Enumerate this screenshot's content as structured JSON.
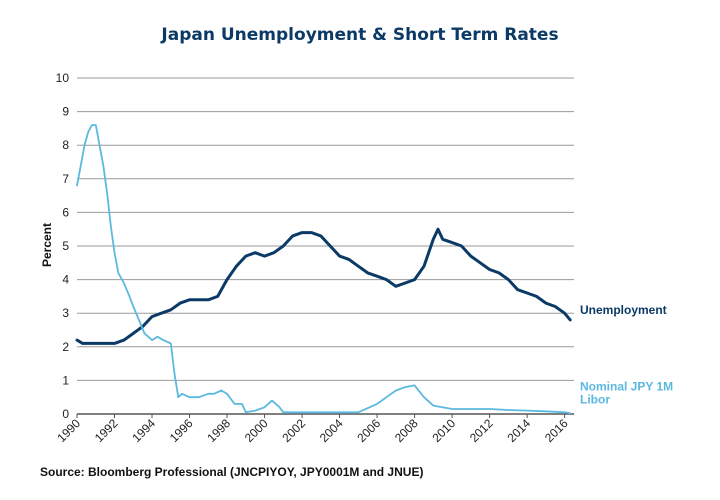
{
  "chart_data": {
    "type": "line",
    "title": "Japan Unemployment & Short Term Rates",
    "xlabel": "",
    "ylabel": "Percent",
    "xlim": [
      1990,
      2016.5
    ],
    "ylim": [
      0,
      10
    ],
    "yticks": [
      0,
      1,
      2,
      3,
      4,
      5,
      6,
      7,
      8,
      9,
      10
    ],
    "xticks": [
      "1990",
      "1992",
      "1994",
      "1996",
      "1998",
      "2000",
      "2002",
      "2004",
      "2006",
      "2008",
      "2010",
      "2012",
      "2014",
      "2016"
    ],
    "grid": true,
    "source": "Source: Bloomberg Professional (JNCPIYOY, JPY0001M and JNUE)",
    "series": [
      {
        "name": "Unemployment",
        "label_lines": [
          "Unemployment"
        ],
        "color": "#0b3a66",
        "x": [
          1990,
          1990.3,
          1990.6,
          1991,
          1991.5,
          1992,
          1992.5,
          1993,
          1993.5,
          1994,
          1994.5,
          1995,
          1995.5,
          1996,
          1996.5,
          1997,
          1997.5,
          1998,
          1998.5,
          1999,
          1999.5,
          2000,
          2000.5,
          2001,
          2001.5,
          2002,
          2002.5,
          2003,
          2003.5,
          2004,
          2004.5,
          2005,
          2005.5,
          2006,
          2006.5,
          2007,
          2007.5,
          2008,
          2008.5,
          2009,
          2009.25,
          2009.5,
          2010,
          2010.5,
          2011,
          2011.5,
          2012,
          2012.5,
          2013,
          2013.5,
          2014,
          2014.5,
          2015,
          2015.5,
          2016,
          2016.3
        ],
        "values": [
          2.2,
          2.1,
          2.1,
          2.1,
          2.1,
          2.1,
          2.2,
          2.4,
          2.6,
          2.9,
          3.0,
          3.1,
          3.3,
          3.4,
          3.4,
          3.4,
          3.5,
          4.0,
          4.4,
          4.7,
          4.8,
          4.7,
          4.8,
          5.0,
          5.3,
          5.4,
          5.4,
          5.3,
          5.0,
          4.7,
          4.6,
          4.4,
          4.2,
          4.1,
          4.0,
          3.8,
          3.9,
          4.0,
          4.4,
          5.2,
          5.5,
          5.2,
          5.1,
          5.0,
          4.7,
          4.5,
          4.3,
          4.2,
          4.0,
          3.7,
          3.6,
          3.5,
          3.3,
          3.2,
          3.0,
          2.8
        ]
      },
      {
        "name": "Nominal JPY 1M Libor",
        "label_lines": [
          "Nominal JPY 1M",
          "Libor"
        ],
        "color": "#5bb9e0",
        "x": [
          1990,
          1990.2,
          1990.4,
          1990.6,
          1990.8,
          1991,
          1991.2,
          1991.4,
          1991.6,
          1991.8,
          1992,
          1992.2,
          1992.5,
          1992.8,
          1993,
          1993.3,
          1993.6,
          1994,
          1994.3,
          1994.6,
          1995,
          1995.2,
          1995.4,
          1995.6,
          1996,
          1996.5,
          1997,
          1997.3,
          1997.7,
          1998,
          1998.4,
          1998.8,
          1999,
          1999.5,
          2000,
          2000.4,
          2000.8,
          2001,
          2001.5,
          2002,
          2003,
          2004,
          2005,
          2006,
          2006.5,
          2007,
          2007.5,
          2008,
          2008.5,
          2009,
          2010,
          2011,
          2012,
          2013,
          2014,
          2015,
          2016,
          2016.3
        ],
        "values": [
          6.8,
          7.4,
          8.0,
          8.4,
          8.6,
          8.6,
          8.0,
          7.4,
          6.6,
          5.6,
          4.8,
          4.2,
          3.9,
          3.5,
          3.2,
          2.8,
          2.4,
          2.2,
          2.3,
          2.2,
          2.1,
          1.2,
          0.5,
          0.6,
          0.5,
          0.5,
          0.6,
          0.6,
          0.7,
          0.6,
          0.3,
          0.3,
          0.05,
          0.1,
          0.2,
          0.4,
          0.2,
          0.05,
          0.05,
          0.05,
          0.05,
          0.05,
          0.05,
          0.3,
          0.5,
          0.7,
          0.8,
          0.85,
          0.5,
          0.25,
          0.15,
          0.15,
          0.15,
          0.12,
          0.1,
          0.08,
          0.05,
          0.02
        ]
      }
    ]
  }
}
